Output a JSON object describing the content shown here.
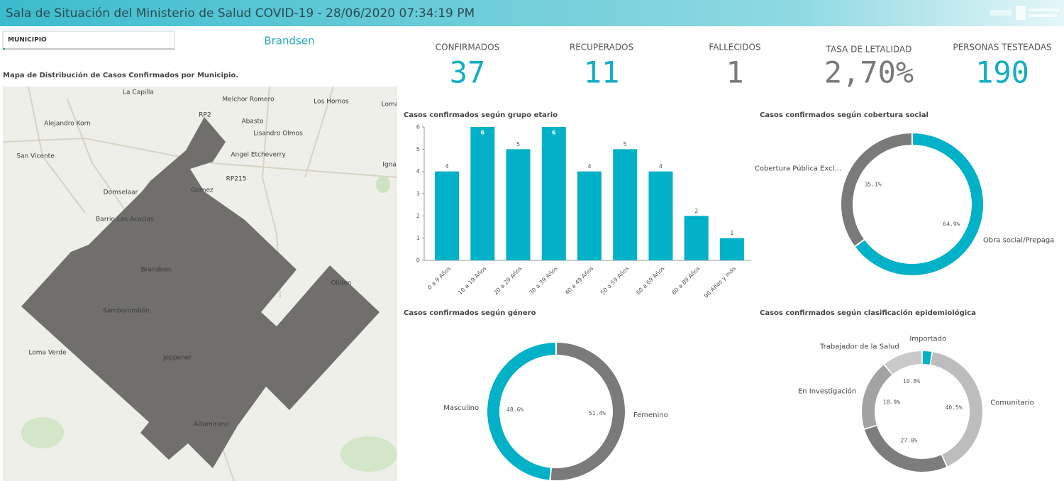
{
  "header": {
    "title": "Sala de Situación del Ministerio de Salud COVID-19 - 28/06/2020 07:34:19 PM"
  },
  "filter": {
    "label": "MUNICIPIO",
    "value": "Brandsen"
  },
  "map": {
    "title": "Mapa de Distribución de Casos Confirmados por Municipio.",
    "places": [
      "La Capilla",
      "Melchor Romero",
      "Los Hornos",
      "Abasto",
      "Alejandro Korn",
      "Lisandro Olmos",
      "San Vicente",
      "Angel Etcheverry",
      "Domselaar",
      "Gomez",
      "Barrio Las Acacias",
      "Brandsen",
      "Oliden",
      "Samborombón",
      "Loma Verde",
      "Jeppener",
      "Altamirano",
      "Igna",
      "Loma",
      "RP2",
      "RP215"
    ]
  },
  "kpis": [
    {
      "label": "CONFIRMADOS",
      "value": 37,
      "color": "#13aec2"
    },
    {
      "label": "RECUPERADOS",
      "value": 11,
      "color": "#13aec2"
    },
    {
      "label": "FALLECIDOS",
      "value": 1,
      "color": "#7a7a7a"
    },
    {
      "label": "TASA DE LETALIDAD",
      "value": "2,70%",
      "color": "#7a7a7a"
    },
    {
      "label": "PERSONAS TESTEADAS",
      "value": 190,
      "color": "#13aec2"
    }
  ],
  "chart_data": [
    {
      "type": "bar",
      "title": "Casos confirmados según grupo etario",
      "categories": [
        "0 a 9 Años",
        "10 a 19 Años",
        "20 a 29 Años",
        "30 a 39 Años",
        "40 a 49 Años",
        "50 a 59 Años",
        "60 a 69 Años",
        "80 a 89 Años",
        "90 Años y más"
      ],
      "values": [
        4,
        6,
        5,
        6,
        4,
        5,
        4,
        2,
        1
      ],
      "color": "#00b1c7",
      "ylim": [
        0,
        6
      ],
      "yticks": [
        0,
        1,
        2,
        3,
        4,
        5,
        6
      ],
      "grid": false
    },
    {
      "type": "donut",
      "title": "Casos confirmados según cobertura social",
      "categories": [
        "Obra social/Prepaga",
        "Cobertura Pública Excl..."
      ],
      "values": [
        64.9,
        35.1
      ],
      "value_labels": [
        "64.9%",
        "35.1%"
      ],
      "colors": [
        "#00b1c7",
        "#7a7a7a"
      ]
    },
    {
      "type": "donut",
      "title": "Casos confirmados según género",
      "categories": [
        "Femenino",
        "Masculino"
      ],
      "values": [
        51.4,
        48.6
      ],
      "value_labels": [
        "51.4%",
        "48.6%"
      ],
      "colors": [
        "#7a7a7a",
        "#00b1c7"
      ]
    },
    {
      "type": "donut",
      "title": "Casos confirmados según clasificación epidemiológica",
      "categories": [
        "Importado",
        "Comunitario",
        null,
        "En Investigación",
        "Trabajador de la Salud"
      ],
      "values": [
        2.7,
        40.5,
        27.0,
        18.9,
        10.8
      ],
      "value_labels": [
        null,
        "40.5%",
        "27.0%",
        "18.9%",
        "10.8%"
      ],
      "colors": [
        "#00b1c7",
        "#bdbdbd",
        "#7d7d7d",
        "#a3a3a3",
        "#c9c9c9"
      ]
    }
  ]
}
